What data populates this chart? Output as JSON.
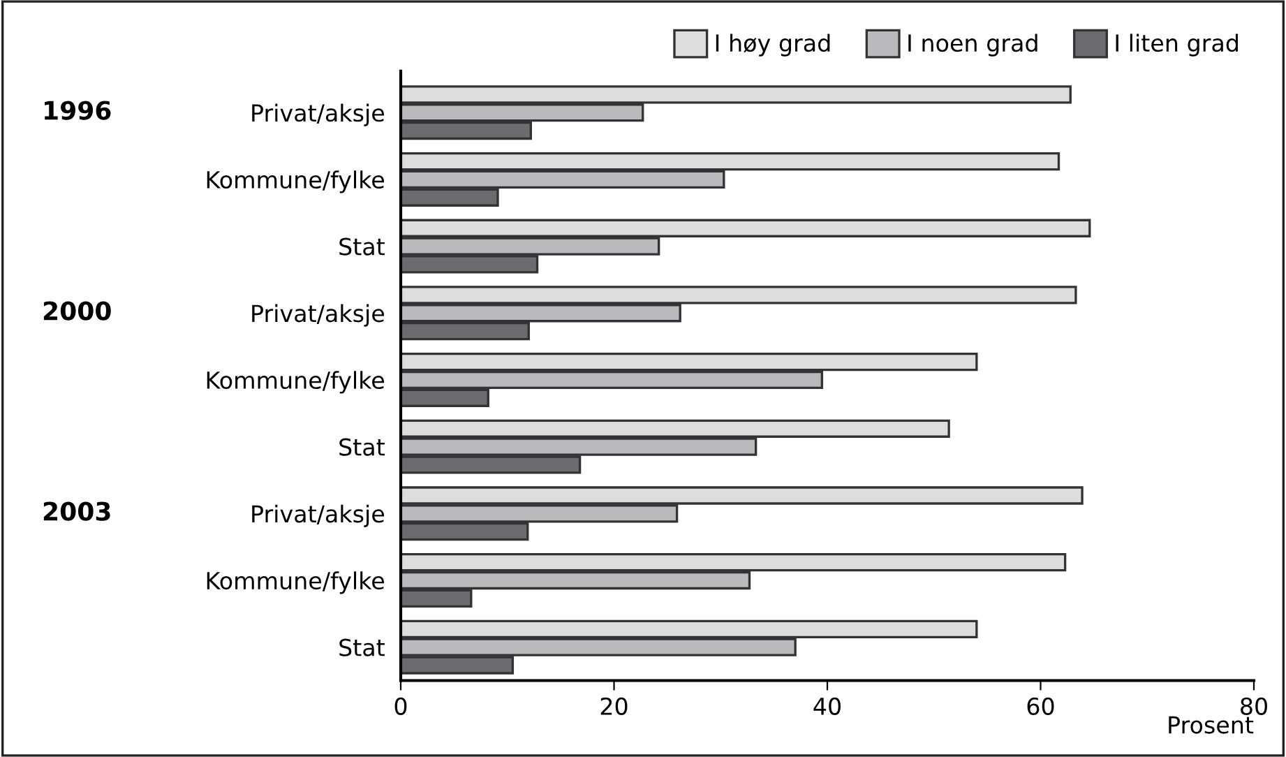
{
  "chart_data": {
    "type": "bar",
    "orientation": "horizontal",
    "categories": [
      "Privat/aksje",
      "Kommune/fylke",
      "Stat",
      "Privat/aksje",
      "Kommune/fylke",
      "Stat",
      "Privat/aksje",
      "Kommune/fylke",
      "Stat"
    ],
    "series": [
      {
        "name": "I høy grad",
        "color": "#dcdddf",
        "values": [
          62.8,
          61.7,
          64.6,
          63.3,
          54.0,
          51.4,
          63.9,
          62.3,
          54.0
        ]
      },
      {
        "name": "I noen grad",
        "color": "#b9babd",
        "values": [
          22.7,
          30.3,
          24.2,
          26.2,
          39.5,
          33.3,
          25.9,
          32.7,
          37.0
        ]
      },
      {
        "name": "I liten grad",
        "color": "#6b6c70",
        "values": [
          12.2,
          9.1,
          12.8,
          12.0,
          8.2,
          16.8,
          11.9,
          6.6,
          10.5
        ]
      }
    ],
    "xlabel": "Prosent",
    "xlim": [
      0,
      80
    ],
    "xticks": [
      0,
      20,
      40,
      60,
      80
    ],
    "grid": false,
    "legend": "top right",
    "annotations": [
      "1996",
      "2000",
      "2003"
    ]
  }
}
